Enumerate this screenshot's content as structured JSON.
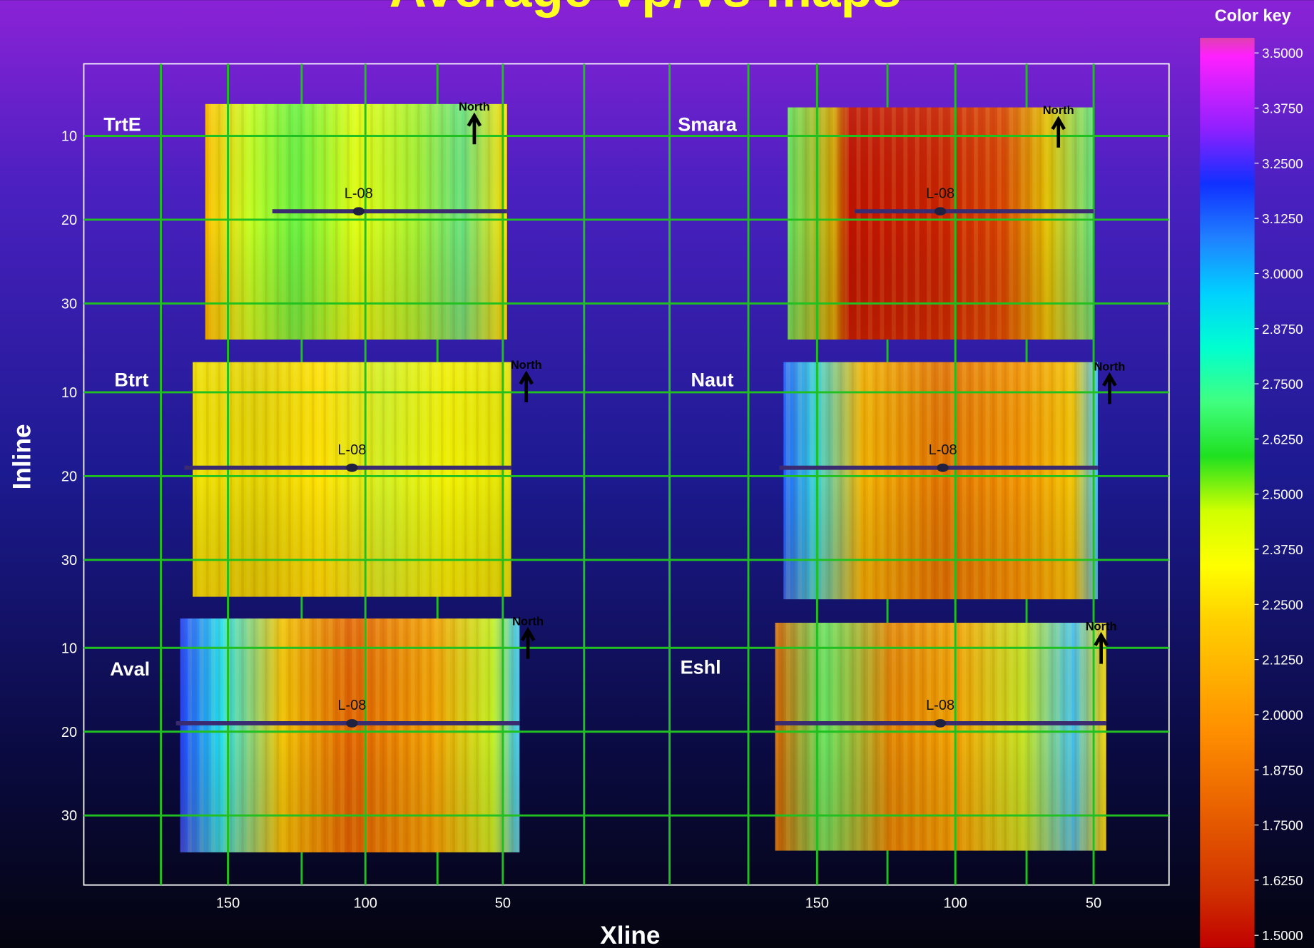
{
  "chart_data": {
    "type": "heatmap",
    "title": "Average Vp/Vs maps",
    "x_label": "Xline",
    "y_label": "Inline",
    "xticks": [
      150,
      100,
      50
    ],
    "yticks": [
      10,
      20,
      30
    ],
    "panels": [
      {
        "name": "TrtE",
        "well": "L-08",
        "north": "North"
      },
      {
        "name": "Smara",
        "well": "L-08",
        "north": "North"
      },
      {
        "name": "Btrt",
        "well": "L-08",
        "north": "North"
      },
      {
        "name": "Naut",
        "well": "L-08",
        "north": "North"
      },
      {
        "name": "Aval",
        "well": "L-08",
        "north": "North"
      },
      {
        "name": "Eshl",
        "well": "L-08",
        "north": "North"
      }
    ],
    "color_key": {
      "title": "Color key",
      "ticks": [
        {
          "value": 3.5,
          "label": "3.5000"
        },
        {
          "value": 3.375,
          "label": "3.3750"
        },
        {
          "value": 3.25,
          "label": "3.2500"
        },
        {
          "value": 3.125,
          "label": "3.1250"
        },
        {
          "value": 3,
          "label": "3.0000"
        },
        {
          "value": 2.875,
          "label": "2.8750"
        },
        {
          "value": 2.75,
          "label": "2.7500"
        },
        {
          "value": 2.625,
          "label": "2.6250"
        },
        {
          "value": 2.5,
          "label": "2.5000"
        },
        {
          "value": 2.375,
          "label": "2.3750"
        },
        {
          "value": 2.25,
          "label": "2.2500"
        },
        {
          "value": 2.125,
          "label": "2.1250"
        },
        {
          "value": 2,
          "label": "2.0000"
        },
        {
          "value": 1.875,
          "label": "1.8750"
        },
        {
          "value": 1.75,
          "label": "1.7500"
        },
        {
          "value": 1.625,
          "label": "1.6250"
        },
        {
          "value": 1.5,
          "label": "1.5000"
        }
      ]
    }
  }
}
